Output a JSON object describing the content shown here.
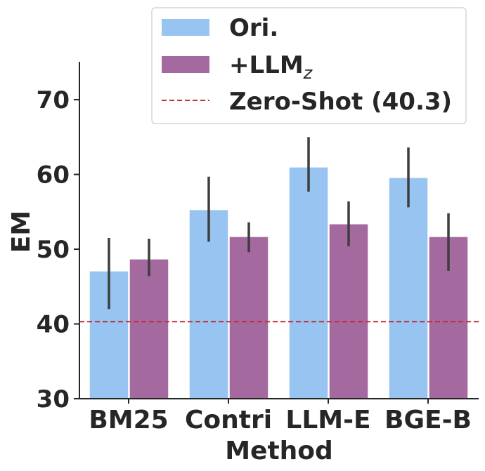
{
  "chart_data": {
    "type": "bar",
    "xlabel": "Method",
    "ylabel": "EM",
    "categories": [
      "BM25",
      "Contri",
      "LLM-E",
      "BGE-B"
    ],
    "ylim": [
      30,
      75
    ],
    "yticks": [
      "30",
      "40",
      "50",
      "60",
      "70"
    ],
    "series": [
      {
        "name": "Ori.",
        "color": "#97c4f0",
        "values": [
          47.1,
          55.3,
          61.0,
          59.6
        ],
        "err_low": [
          42.0,
          51.0,
          57.7,
          55.6
        ],
        "err_high": [
          51.5,
          59.7,
          65.0,
          63.6
        ]
      },
      {
        "name": "+LLM",
        "name_sub": "z",
        "color": "#a4699f",
        "values": [
          48.7,
          51.7,
          53.4,
          51.7
        ],
        "err_low": [
          46.4,
          49.6,
          50.4,
          47.1
        ],
        "err_high": [
          51.4,
          53.6,
          56.4,
          54.8
        ]
      }
    ],
    "reference_line": {
      "label": "Zero-Shot (40.3)",
      "value": 40.3,
      "color": "#c62a36",
      "style": "dashed"
    },
    "legend_position": "top-right",
    "grid": false
  }
}
